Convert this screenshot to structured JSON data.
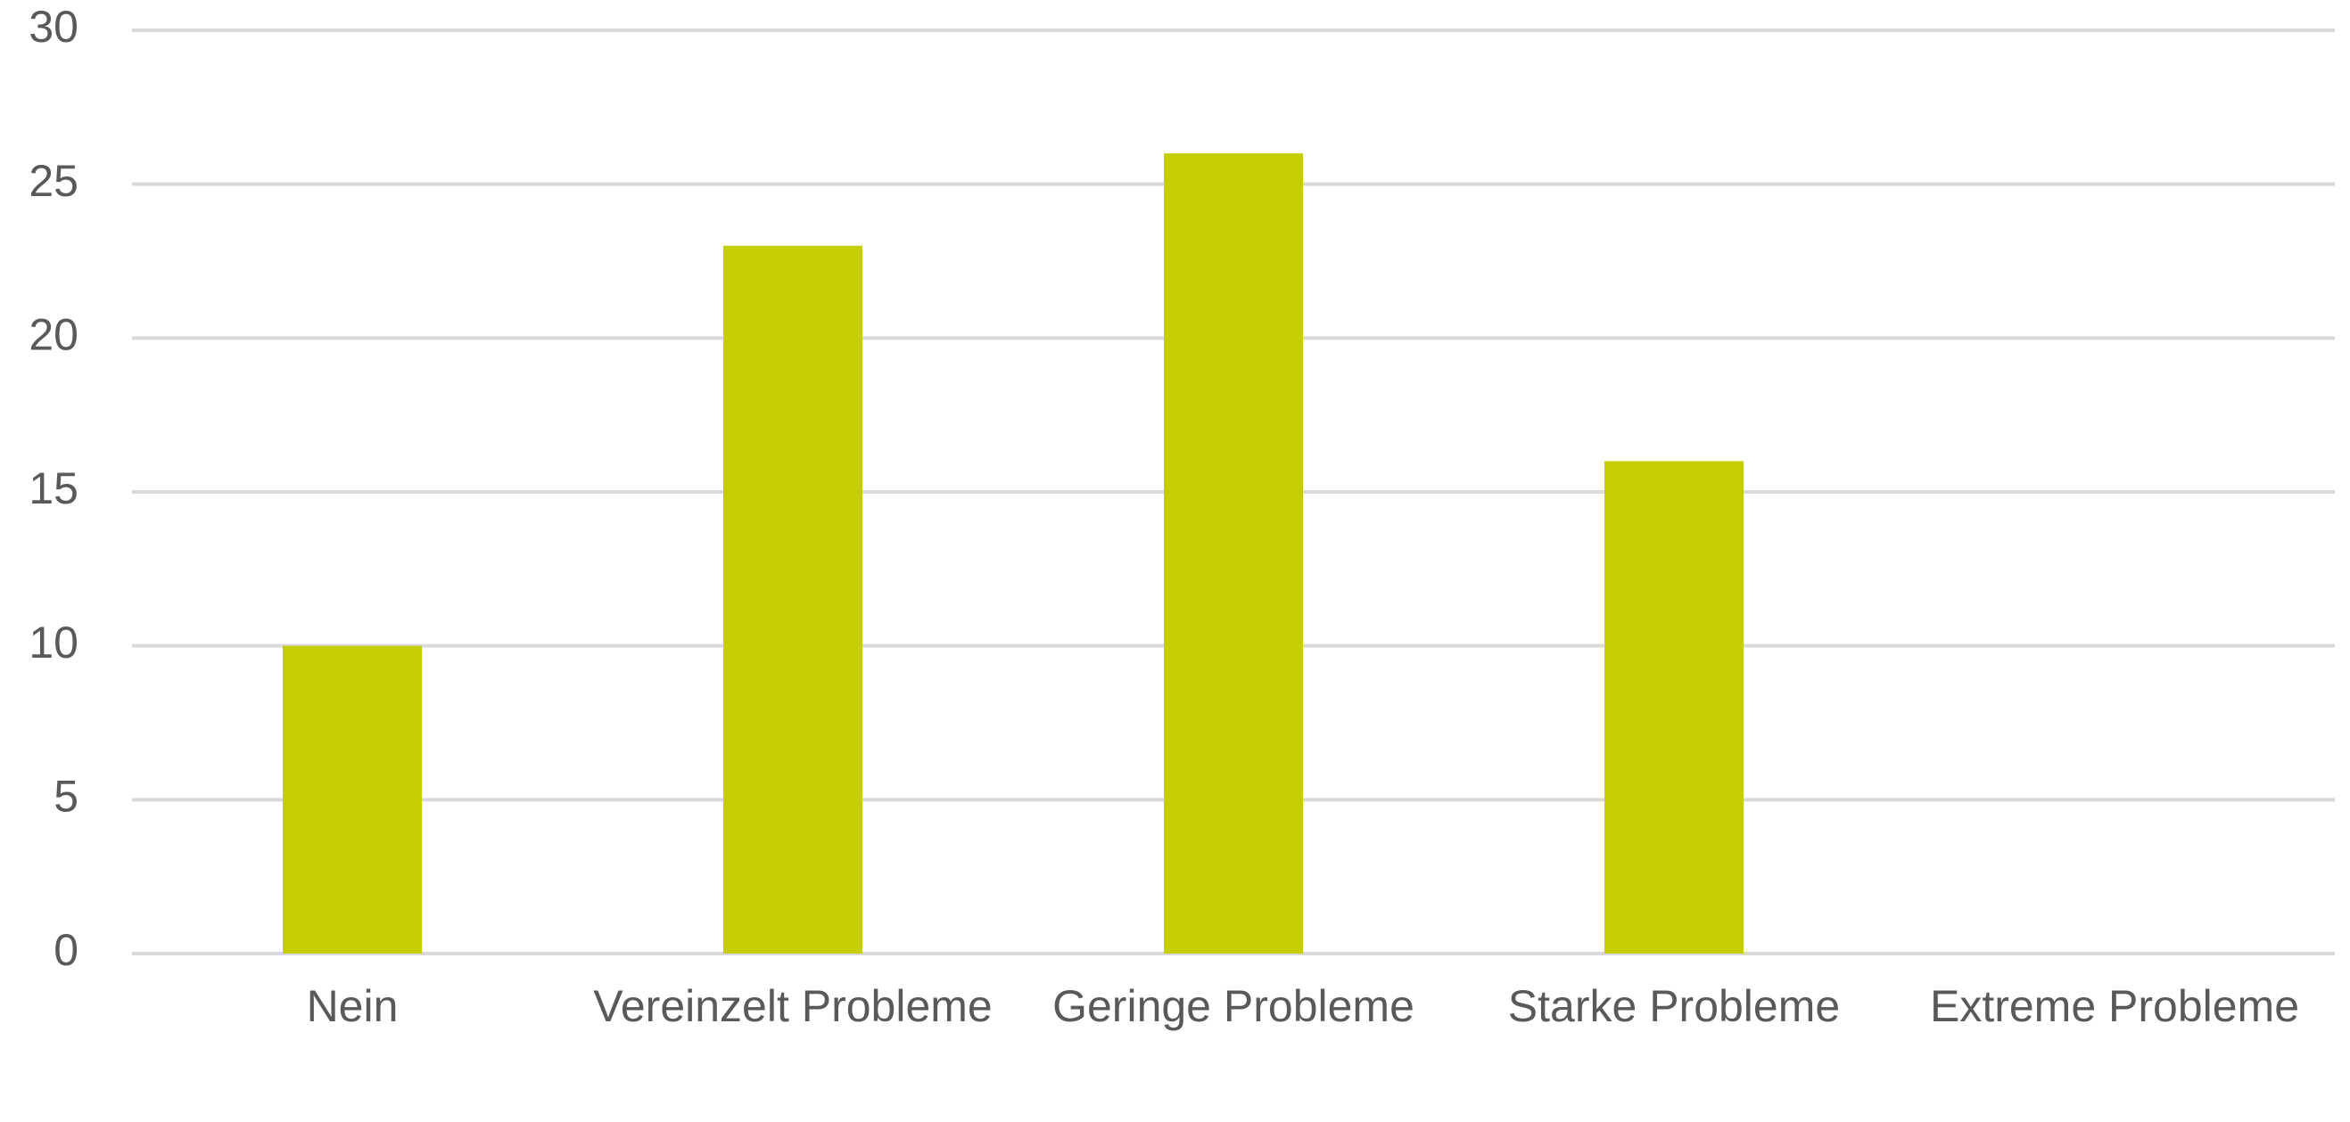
{
  "chart_data": {
    "type": "bar",
    "categories": [
      "Nein",
      "Vereinzelt Probleme",
      "Geringe Probleme",
      "Starke Probleme",
      "Extreme Probleme"
    ],
    "values": [
      10,
      23,
      26,
      16,
      0
    ],
    "color": "#c5cd05",
    "ylim": [
      0,
      30
    ],
    "yticks": [
      0,
      5,
      10,
      15,
      20,
      25,
      30
    ],
    "grid": true
  }
}
